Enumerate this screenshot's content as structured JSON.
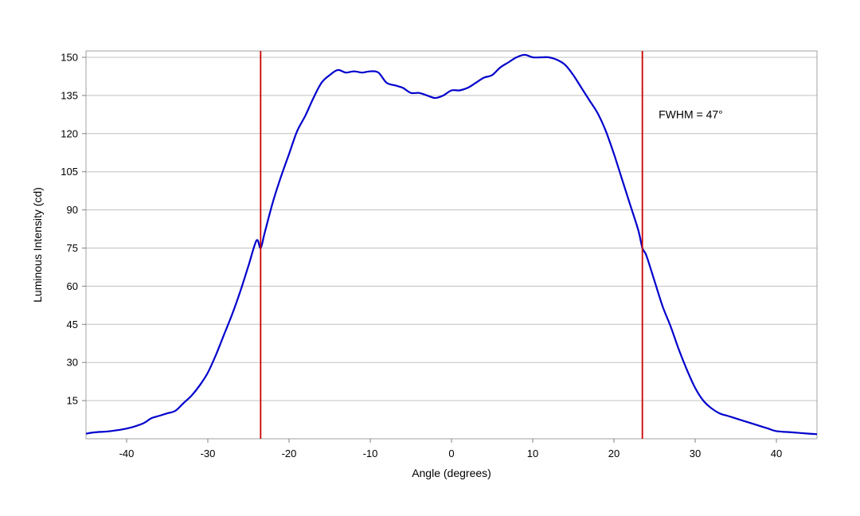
{
  "chart_data": {
    "type": "line",
    "title": "",
    "xlabel": "Angle (degrees)",
    "ylabel": "Luminous Intensity (cd)",
    "xlim": [
      -45,
      45
    ],
    "ylim": [
      0,
      152.5
    ],
    "x_ticks": [
      -40,
      -30,
      -20,
      -10,
      0,
      10,
      20,
      30,
      40
    ],
    "y_ticks": [
      15,
      30,
      45,
      60,
      75,
      90,
      105,
      120,
      135,
      150
    ],
    "grid": "horizontal",
    "legend": "none",
    "series": [
      {
        "color": "#0000cc",
        "x": [
          -45,
          -44,
          -42,
          -40,
          -38,
          -37,
          -36,
          -35,
          -34,
          -33,
          -32,
          -31,
          -30,
          -29,
          -28,
          -27,
          -26,
          -25,
          -24,
          -23.5,
          -23,
          -22,
          -21,
          -20,
          -19,
          -18,
          -17,
          -16,
          -15,
          -14,
          -13,
          -12,
          -11,
          -10,
          -9,
          -8,
          -7,
          -6,
          -5,
          -4,
          -3,
          -2,
          -1,
          0,
          1,
          2,
          3,
          4,
          5,
          6,
          7,
          8,
          9,
          10,
          11,
          12,
          13,
          14,
          15,
          16,
          17,
          18,
          19,
          20,
          21,
          22,
          23,
          23.5,
          24,
          25,
          26,
          27,
          28,
          29,
          30,
          31,
          32,
          33,
          34,
          35,
          36,
          37,
          38,
          39,
          40,
          42,
          44,
          45
        ],
        "y": [
          2,
          2.5,
          3,
          4,
          6,
          8,
          9,
          10,
          11,
          14,
          17,
          21,
          26,
          33,
          41,
          49,
          58,
          68,
          78,
          75,
          81,
          93,
          103,
          112,
          121,
          127,
          134,
          140,
          143,
          145,
          144,
          144.5,
          144,
          144.5,
          144,
          140,
          139,
          138,
          136,
          136,
          135,
          134,
          135,
          137,
          137,
          138,
          140,
          142,
          143,
          146,
          148,
          150,
          151,
          150,
          150,
          150,
          149,
          147,
          143,
          138,
          133,
          128,
          121,
          112,
          102,
          92,
          82,
          75,
          72,
          62,
          52,
          44,
          35,
          27,
          20,
          15,
          12,
          10,
          9,
          8,
          7,
          6,
          5,
          4,
          3,
          2.5,
          2,
          1.8
        ]
      }
    ],
    "markers": [
      {
        "x": -23.5,
        "color": "#cc0000"
      },
      {
        "x": 23.5,
        "color": "#cc0000"
      }
    ],
    "annotation": {
      "text": "FWHM = 47°",
      "x": 25.5,
      "y": 126
    }
  }
}
